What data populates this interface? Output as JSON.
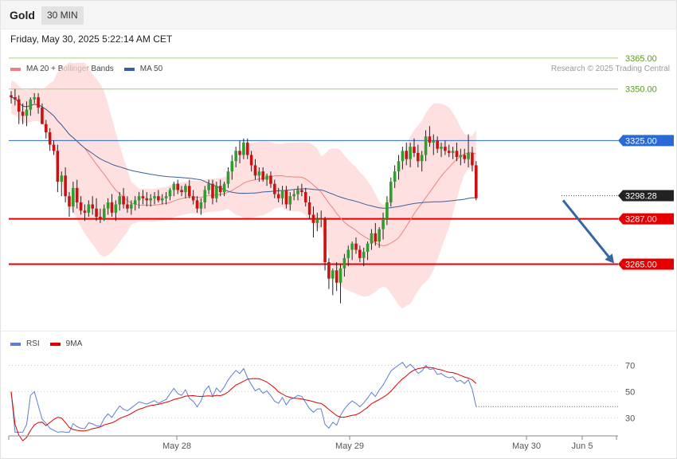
{
  "header": {
    "instrument": "Gold",
    "timeframe": "30 MIN",
    "datetime": "Friday, May 30, 2025 5:22:14 AM CET",
    "copyright": "Research © 2025 Trading Central"
  },
  "legend": {
    "main": [
      {
        "label": "MA 20 + Bollinger Bands",
        "color": "#f08080"
      },
      {
        "label": "MA 50",
        "color": "#3a5f9a"
      }
    ],
    "rsi": [
      {
        "label": "RSI",
        "color": "#5b7fd6"
      },
      {
        "label": "9MA",
        "color": "#e00000"
      }
    ]
  },
  "chart_data": [
    {
      "type": "candlestick",
      "ylim": [
        3225,
        3370
      ],
      "grid": false,
      "x_ticks": [
        "May 28",
        "May 29",
        "May 30",
        "Jun 5"
      ],
      "y_ticks": [
        3365,
        3350
      ],
      "levels": [
        {
          "value": 3365.0,
          "label": "3365.00",
          "kind": "green"
        },
        {
          "value": 3350.0,
          "label": "3350.00",
          "kind": "green"
        },
        {
          "value": 3325.0,
          "label": "3325.00",
          "kind": "blue"
        },
        {
          "value": 3298.28,
          "label": "3298.28",
          "kind": "current"
        },
        {
          "value": 3287.0,
          "label": "3287.00",
          "kind": "red"
        },
        {
          "value": 3265.0,
          "label": "3265.00",
          "kind": "red"
        }
      ],
      "forecast_arrow": {
        "from": 3296,
        "to": 3265
      },
      "ohlc": [
        [
          3347,
          3349,
          3343,
          3346
        ],
        [
          3346,
          3350,
          3342,
          3345
        ],
        [
          3345,
          3347,
          3333,
          3339
        ],
        [
          3339,
          3343,
          3333,
          3337
        ],
        [
          3337,
          3344,
          3332,
          3340
        ],
        [
          3340,
          3346,
          3337,
          3345
        ],
        [
          3345,
          3348,
          3343,
          3346
        ],
        [
          3346,
          3348,
          3338,
          3341
        ],
        [
          3341,
          3343,
          3333,
          3333
        ],
        [
          3333,
          3335,
          3326,
          3329
        ],
        [
          3329,
          3331,
          3320,
          3323
        ],
        [
          3323,
          3325,
          3318,
          3320
        ],
        [
          3320,
          3323,
          3300,
          3305
        ],
        [
          3305,
          3310,
          3298,
          3308
        ],
        [
          3308,
          3312,
          3295,
          3298
        ],
        [
          3298,
          3300,
          3288,
          3293
        ],
        [
          3293,
          3305,
          3290,
          3302
        ],
        [
          3302,
          3306,
          3292,
          3295
        ],
        [
          3295,
          3298,
          3289,
          3291
        ],
        [
          3291,
          3294,
          3286,
          3290
        ],
        [
          3290,
          3296,
          3288,
          3294
        ],
        [
          3294,
          3298,
          3289,
          3292
        ],
        [
          3292,
          3297,
          3286,
          3288
        ],
        [
          3288,
          3292,
          3285,
          3287
        ],
        [
          3287,
          3294,
          3286,
          3292
        ],
        [
          3292,
          3297,
          3289,
          3295
        ],
        [
          3295,
          3299,
          3288,
          3290
        ],
        [
          3290,
          3296,
          3286,
          3294
        ],
        [
          3294,
          3300,
          3291,
          3298
        ],
        [
          3298,
          3302,
          3292,
          3294
        ],
        [
          3294,
          3298,
          3290,
          3292
        ],
        [
          3292,
          3296,
          3289,
          3294
        ],
        [
          3294,
          3298,
          3291,
          3296
        ],
        [
          3296,
          3300,
          3292,
          3298
        ],
        [
          3298,
          3301,
          3294,
          3297
        ],
        [
          3297,
          3300,
          3293,
          3296
        ],
        [
          3296,
          3299,
          3293,
          3297
        ],
        [
          3297,
          3300,
          3294,
          3298
        ],
        [
          3298,
          3301,
          3295,
          3296
        ],
        [
          3296,
          3299,
          3294,
          3297
        ],
        [
          3297,
          3300,
          3294,
          3298
        ],
        [
          3298,
          3302,
          3296,
          3301
        ],
        [
          3301,
          3305,
          3298,
          3304
        ],
        [
          3304,
          3306,
          3299,
          3301
        ],
        [
          3301,
          3303,
          3298,
          3300
        ],
        [
          3300,
          3304,
          3297,
          3303
        ],
        [
          3303,
          3306,
          3297,
          3298
        ],
        [
          3298,
          3301,
          3294,
          3296
        ],
        [
          3296,
          3298,
          3290,
          3292
        ],
        [
          3292,
          3297,
          3289,
          3295
        ],
        [
          3295,
          3303,
          3292,
          3301
        ],
        [
          3301,
          3306,
          3299,
          3304
        ],
        [
          3304,
          3306,
          3294,
          3297
        ],
        [
          3297,
          3305,
          3295,
          3303
        ],
        [
          3303,
          3306,
          3298,
          3300
        ],
        [
          3300,
          3305,
          3298,
          3304
        ],
        [
          3304,
          3312,
          3302,
          3310
        ],
        [
          3310,
          3318,
          3306,
          3315
        ],
        [
          3315,
          3322,
          3312,
          3320
        ],
        [
          3320,
          3325,
          3314,
          3318
        ],
        [
          3318,
          3326,
          3316,
          3324
        ],
        [
          3324,
          3326,
          3316,
          3318
        ],
        [
          3318,
          3320,
          3310,
          3313
        ],
        [
          3313,
          3316,
          3306,
          3308
        ],
        [
          3308,
          3312,
          3305,
          3310
        ],
        [
          3310,
          3312,
          3305,
          3306
        ],
        [
          3306,
          3309,
          3303,
          3308
        ],
        [
          3308,
          3310,
          3302,
          3304
        ],
        [
          3304,
          3306,
          3297,
          3299
        ],
        [
          3299,
          3302,
          3295,
          3297
        ],
        [
          3297,
          3303,
          3294,
          3301
        ],
        [
          3301,
          3303,
          3292,
          3294
        ],
        [
          3294,
          3300,
          3291,
          3298
        ],
        [
          3298,
          3301,
          3296,
          3299
        ],
        [
          3299,
          3303,
          3296,
          3301
        ],
        [
          3301,
          3304,
          3298,
          3300
        ],
        [
          3300,
          3302,
          3293,
          3295
        ],
        [
          3295,
          3298,
          3287,
          3289
        ],
        [
          3289,
          3293,
          3278,
          3285
        ],
        [
          3285,
          3290,
          3281,
          3287
        ],
        [
          3287,
          3291,
          3283,
          3287
        ],
        [
          3287,
          3288,
          3262,
          3266
        ],
        [
          3266,
          3268,
          3253,
          3258
        ],
        [
          3258,
          3263,
          3250,
          3262
        ],
        [
          3262,
          3266,
          3252,
          3256
        ],
        [
          3256,
          3265,
          3246,
          3263
        ],
        [
          3263,
          3270,
          3259,
          3268
        ],
        [
          3268,
          3274,
          3264,
          3272
        ],
        [
          3272,
          3276,
          3267,
          3275
        ],
        [
          3275,
          3278,
          3270,
          3272
        ],
        [
          3272,
          3274,
          3266,
          3268
        ],
        [
          3268,
          3273,
          3264,
          3271
        ],
        [
          3271,
          3276,
          3267,
          3275
        ],
        [
          3275,
          3282,
          3272,
          3280
        ],
        [
          3280,
          3285,
          3274,
          3276
        ],
        [
          3276,
          3283,
          3273,
          3282
        ],
        [
          3282,
          3290,
          3277,
          3287
        ],
        [
          3287,
          3298,
          3284,
          3295
        ],
        [
          3295,
          3307,
          3293,
          3305
        ],
        [
          3305,
          3313,
          3302,
          3310
        ],
        [
          3310,
          3318,
          3306,
          3315
        ],
        [
          3315,
          3322,
          3311,
          3320
        ],
        [
          3320,
          3324,
          3313,
          3316
        ],
        [
          3316,
          3324,
          3312,
          3322
        ],
        [
          3322,
          3326,
          3317,
          3319
        ],
        [
          3319,
          3323,
          3312,
          3315
        ],
        [
          3315,
          3320,
          3310,
          3318
        ],
        [
          3318,
          3330,
          3315,
          3327
        ],
        [
          3327,
          3332,
          3322,
          3324
        ],
        [
          3324,
          3328,
          3318,
          3325
        ],
        [
          3325,
          3327,
          3319,
          3321
        ],
        [
          3321,
          3324,
          3317,
          3322
        ],
        [
          3322,
          3325,
          3318,
          3320
        ],
        [
          3320,
          3323,
          3317,
          3319
        ],
        [
          3319,
          3322,
          3316,
          3320
        ],
        [
          3320,
          3324,
          3315,
          3317
        ],
        [
          3317,
          3321,
          3313,
          3318
        ],
        [
          3318,
          3321,
          3314,
          3316
        ],
        [
          3316,
          3328,
          3312,
          3319
        ],
        [
          3319,
          3322,
          3310,
          3313
        ],
        [
          3313,
          3315,
          3296,
          3297
        ]
      ]
    },
    {
      "type": "line",
      "ylim": [
        18,
        80
      ],
      "y_ticks": [
        70,
        50,
        30
      ],
      "series_names": [
        "RSI",
        "9MA"
      ]
    }
  ]
}
